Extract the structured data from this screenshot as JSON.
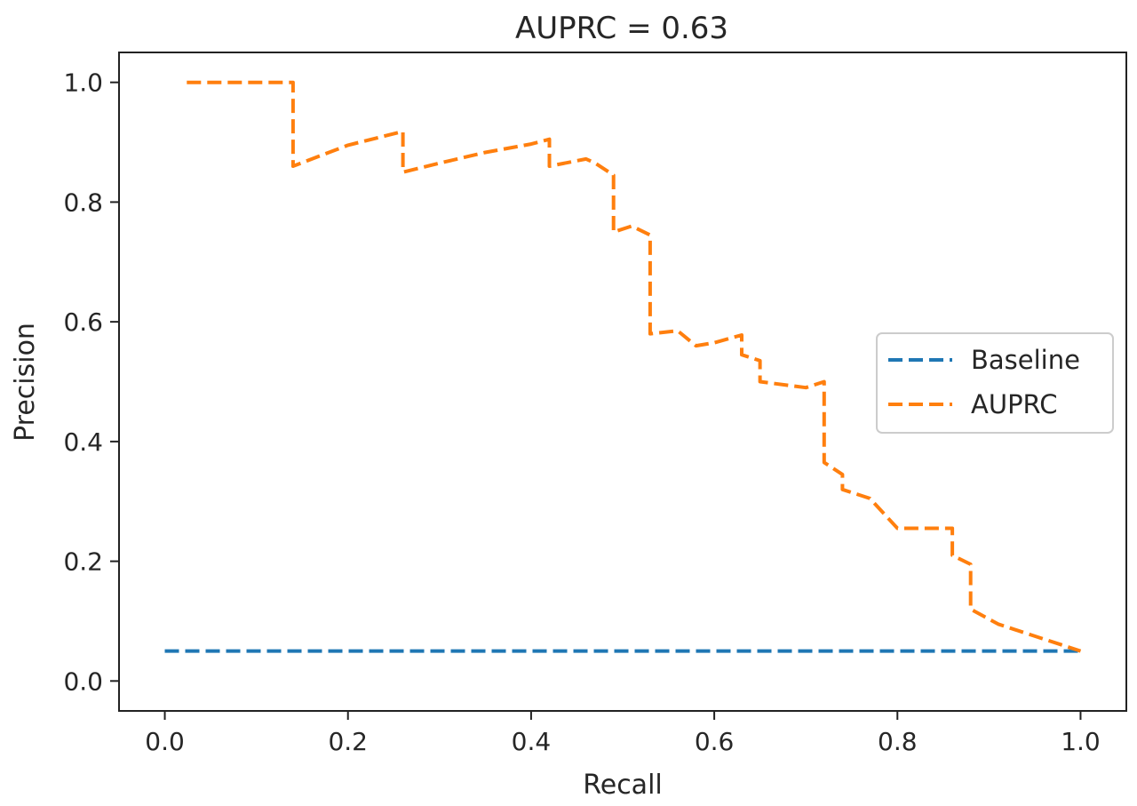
{
  "chart_data": {
    "type": "line",
    "title": "AUPRC = 0.63",
    "xlabel": "Recall",
    "ylabel": "Precision",
    "xlim": [
      -0.05,
      1.05
    ],
    "ylim": [
      -0.05,
      1.05
    ],
    "xticks": [
      "0.0",
      "0.2",
      "0.4",
      "0.6",
      "0.8",
      "1.0"
    ],
    "yticks": [
      "0.0",
      "0.2",
      "0.4",
      "0.6",
      "0.8",
      "1.0"
    ],
    "xtick_values": [
      0.0,
      0.2,
      0.4,
      0.6,
      0.8,
      1.0
    ],
    "ytick_values": [
      0.0,
      0.2,
      0.4,
      0.6,
      0.8,
      1.0
    ],
    "grid": false,
    "legend_position": "center-right",
    "series": [
      {
        "name": "Baseline",
        "color": "#1f77b4",
        "style": "dashed",
        "x": [
          0.0,
          1.0
        ],
        "y": [
          0.05,
          0.05
        ]
      },
      {
        "name": "AUPRC",
        "color": "#ff7f0e",
        "style": "dashed",
        "x": [
          0.024,
          0.14,
          0.14,
          0.2,
          0.26,
          0.26,
          0.3,
          0.35,
          0.4,
          0.42,
          0.42,
          0.46,
          0.47,
          0.49,
          0.49,
          0.51,
          0.53,
          0.53,
          0.56,
          0.58,
          0.6,
          0.63,
          0.63,
          0.65,
          0.65,
          0.7,
          0.72,
          0.72,
          0.74,
          0.74,
          0.77,
          0.8,
          0.84,
          0.86,
          0.86,
          0.88,
          0.88,
          0.91,
          0.96,
          1.0
        ],
        "y": [
          1.0,
          1.0,
          0.86,
          0.895,
          0.918,
          0.85,
          0.865,
          0.883,
          0.897,
          0.905,
          0.86,
          0.872,
          0.865,
          0.845,
          0.75,
          0.76,
          0.745,
          0.58,
          0.585,
          0.56,
          0.565,
          0.578,
          0.545,
          0.535,
          0.5,
          0.49,
          0.5,
          0.365,
          0.345,
          0.32,
          0.305,
          0.255,
          0.255,
          0.255,
          0.21,
          0.195,
          0.12,
          0.095,
          0.07,
          0.05
        ]
      }
    ]
  }
}
